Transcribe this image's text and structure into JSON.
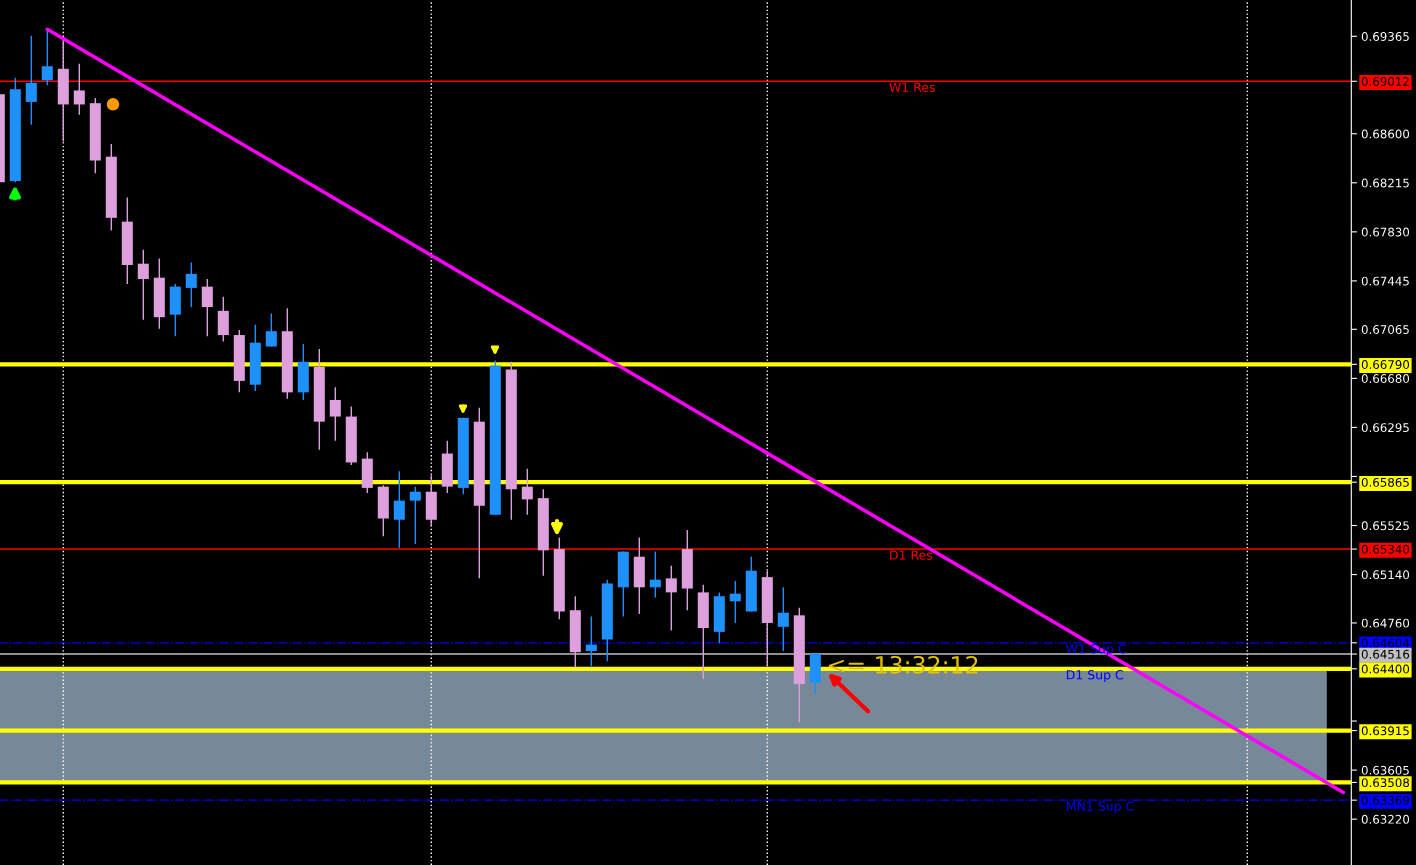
{
  "chart_data": {
    "type": "candlestick",
    "categories": [
      null,
      null,
      null,
      null,
      null,
      null,
      null,
      null,
      null,
      null,
      null,
      null,
      null,
      null,
      null,
      null,
      null,
      null,
      null,
      null,
      null,
      null,
      null,
      null,
      null,
      null,
      null,
      null,
      null,
      null,
      null,
      null,
      null,
      null,
      null,
      null,
      null,
      null,
      null,
      null,
      null,
      null,
      null,
      null,
      null,
      null,
      null,
      null,
      null,
      null,
      null,
      null,
      null,
      null,
      null,
      null,
      null,
      null,
      null,
      null,
      null,
      null,
      null,
      null,
      null,
      null,
      null,
      null,
      null,
      null,
      null,
      null,
      null,
      null,
      null,
      null,
      null,
      null,
      null,
      null,
      null,
      null,
      null,
      null,
      null
    ],
    "ohlc": [
      [
        0.6891,
        0.6892,
        0.6821,
        0.6822
      ],
      [
        0.6823,
        0.6904,
        0.6822,
        0.6895
      ],
      [
        0.6885,
        0.6937,
        0.6867,
        0.69
      ],
      [
        0.6902,
        0.6942,
        0.6898,
        0.6913
      ],
      [
        0.6911,
        0.6935,
        0.6854,
        0.6883
      ],
      [
        0.6894,
        0.6915,
        0.6875,
        0.6883
      ],
      [
        0.6884,
        0.6888,
        0.6829,
        0.6839
      ],
      [
        0.6842,
        0.6852,
        0.6784,
        0.6794
      ],
      [
        0.6791,
        0.681,
        0.6742,
        0.6757
      ],
      [
        0.6758,
        0.6769,
        0.6714,
        0.6746
      ],
      [
        0.6747,
        0.6762,
        0.6707,
        0.6716
      ],
      [
        0.6718,
        0.6742,
        0.6701,
        0.674
      ],
      [
        0.6739,
        0.6759,
        0.6724,
        0.675
      ],
      [
        0.674,
        0.6746,
        0.6701,
        0.6724
      ],
      [
        0.6721,
        0.6732,
        0.6697,
        0.6702
      ],
      [
        0.6702,
        0.6706,
        0.6657,
        0.6666
      ],
      [
        0.6663,
        0.671,
        0.6658,
        0.6696
      ],
      [
        0.6693,
        0.6719,
        0.6693,
        0.6705
      ],
      [
        0.6705,
        0.6723,
        0.6652,
        0.6657
      ],
      [
        0.6657,
        0.6695,
        0.6651,
        0.6681
      ],
      [
        0.6677,
        0.6691,
        0.6612,
        0.6634
      ],
      [
        0.6651,
        0.6661,
        0.6619,
        0.6638
      ],
      [
        0.6638,
        0.6646,
        0.66,
        0.6602
      ],
      [
        0.6605,
        0.661,
        0.6578,
        0.6582
      ],
      [
        0.6583,
        0.6584,
        0.6544,
        0.6558
      ],
      [
        0.6557,
        0.6595,
        0.6535,
        0.6572
      ],
      [
        0.6572,
        0.6583,
        0.6538,
        0.6579
      ],
      [
        0.6579,
        0.6592,
        0.6552,
        0.6557
      ],
      [
        0.6609,
        0.6619,
        0.6578,
        0.6583
      ],
      [
        0.6582,
        0.6637,
        0.6577,
        0.6637
      ],
      [
        0.6634,
        0.6645,
        0.6511,
        0.6568
      ],
      [
        0.6561,
        0.6682,
        0.6561,
        0.6678
      ],
      [
        0.6675,
        0.6681,
        0.6557,
        0.6581
      ],
      [
        0.6583,
        0.6597,
        0.6561,
        0.6573
      ],
      [
        0.6574,
        0.6581,
        0.6513,
        0.6533
      ],
      [
        0.6534,
        0.6543,
        0.6479,
        0.6485
      ],
      [
        0.6486,
        0.6497,
        0.6441,
        0.6453
      ],
      [
        0.6454,
        0.6481,
        0.6442,
        0.6459
      ],
      [
        0.6463,
        0.651,
        0.6446,
        0.6507
      ],
      [
        0.6504,
        0.6532,
        0.6481,
        0.6532
      ],
      [
        0.6528,
        0.6543,
        0.6483,
        0.6504
      ],
      [
        0.6504,
        0.6532,
        0.6496,
        0.651
      ],
      [
        0.6511,
        0.6521,
        0.647,
        0.65
      ],
      [
        0.6534,
        0.6549,
        0.6486,
        0.6503
      ],
      [
        0.65,
        0.6506,
        0.6432,
        0.6472
      ],
      [
        0.6469,
        0.65,
        0.646,
        0.6497
      ],
      [
        0.6493,
        0.6509,
        0.6476,
        0.6499
      ],
      [
        0.6485,
        0.6528,
        0.6485,
        0.6517
      ],
      [
        0.6512,
        0.6517,
        0.6442,
        0.6476
      ],
      [
        0.6473,
        0.6504,
        0.6454,
        0.6484
      ],
      [
        0.6482,
        0.6488,
        0.6398,
        0.6428
      ],
      [
        0.6429,
        0.6452,
        0.642,
        0.6452
      ],
      null,
      null,
      null,
      null,
      null,
      null,
      null,
      null,
      null,
      null,
      null,
      null,
      null,
      null,
      null,
      null,
      null,
      null,
      null,
      null,
      null,
      null,
      null,
      null,
      null,
      null,
      null,
      null,
      null,
      null,
      null,
      null,
      null
    ],
    "colors": [
      "#dda0dd",
      "#1e90ff",
      "#1e90ff",
      "#1e90ff",
      "#dda0dd",
      "#dda0dd",
      "#dda0dd",
      "#dda0dd",
      "#dda0dd",
      "#dda0dd",
      "#dda0dd",
      "#1e90ff",
      "#1e90ff",
      "#dda0dd",
      "#dda0dd",
      "#dda0dd",
      "#1e90ff",
      "#1e90ff",
      "#dda0dd",
      "#1e90ff",
      "#dda0dd",
      "#dda0dd",
      "#dda0dd",
      "#dda0dd",
      "#dda0dd",
      "#1e90ff",
      "#1e90ff",
      "#dda0dd",
      "#dda0dd",
      "#1e90ff",
      "#dda0dd",
      "#1e90ff",
      "#dda0dd",
      "#dda0dd",
      "#dda0dd",
      "#dda0dd",
      "#dda0dd",
      "#1e90ff",
      "#1e90ff",
      "#1e90ff",
      "#dda0dd",
      "#1e90ff",
      "#dda0dd",
      "#dda0dd",
      "#dda0dd",
      "#1e90ff",
      "#1e90ff",
      "#1e90ff",
      "#dda0dd",
      "#1e90ff",
      "#dda0dd",
      "#1e90ff",
      null,
      null,
      null,
      null,
      null,
      null,
      null,
      null,
      null,
      null,
      null,
      null,
      null,
      null,
      null,
      null,
      null,
      null,
      null,
      null,
      null,
      null,
      null,
      null,
      null,
      null,
      null,
      null,
      null,
      null,
      null,
      null,
      null
    ],
    "series": [
      {
        "type": "line",
        "color": "#ff00ff",
        "values": [
          null,
          null,
          null,
          0.6942,
          null,
          null,
          null,
          null,
          null,
          null,
          null,
          null,
          null,
          null,
          null,
          null,
          null,
          null,
          null,
          null,
          null,
          null,
          null,
          null,
          null,
          null,
          null,
          null,
          null,
          null,
          null,
          null,
          null,
          null,
          null,
          null,
          null,
          null,
          null,
          null,
          null,
          null,
          null,
          null,
          null,
          null,
          null,
          null,
          null,
          null,
          null,
          null,
          null,
          null,
          null,
          null,
          null,
          null,
          null,
          null,
          null,
          null,
          null,
          null,
          null,
          null,
          null,
          null,
          null,
          null,
          null,
          null,
          null,
          null,
          null,
          null,
          null,
          null,
          null,
          null,
          null,
          null,
          null,
          null,
          0.6343
        ]
      }
    ],
    "ylim": [
      0.6286,
      0.6965
    ],
    "yticks": [
      {
        "value": 0.69365,
        "label": "0.69365"
      },
      {
        "value": 0.686,
        "label": "0.68600"
      },
      {
        "value": 0.68215,
        "label": "0.68215"
      },
      {
        "value": 0.6783,
        "label": "0.67830"
      },
      {
        "value": 0.67445,
        "label": "0.67445"
      },
      {
        "value": 0.67065,
        "label": "0.67065"
      },
      {
        "value": 0.6668,
        "label": "0.66680"
      },
      {
        "value": 0.66295,
        "label": "0.66295"
      },
      {
        "value": 0.6591,
        "label": null
      },
      {
        "value": 0.65525,
        "label": "0.65525"
      },
      {
        "value": 0.6514,
        "label": "0.65140"
      },
      {
        "value": 0.6476,
        "label": "0.64760"
      },
      {
        "value": 0.6399,
        "label": null
      },
      {
        "value": 0.63605,
        "label": "0.63605"
      },
      {
        "value": 0.6322,
        "label": "0.63220"
      },
      {
        "value": 0.69012,
        "label": "0.69012"
      },
      {
        "value": 0.6679,
        "label": "0.66790"
      },
      {
        "value": 0.65865,
        "label": "0.65865"
      },
      {
        "value": 0.6534,
        "label": "0.65340"
      },
      {
        "value": 0.64604,
        "label": "0.64604"
      },
      {
        "value": 0.64516,
        "label": "0.64516"
      },
      {
        "value": 0.644,
        "label": "0.64400"
      },
      {
        "value": 0.63915,
        "label": "0.63915"
      },
      {
        "value": 0.63508,
        "label": "0.63508"
      },
      {
        "value": 0.63369,
        "label": "0.63369"
      }
    ],
    "ref_lines": [
      {
        "axis": "y",
        "value": 0.69012,
        "label": "W1 Res",
        "color": "#ff0000",
        "line_style": "solid"
      },
      {
        "axis": "y",
        "value": 0.6679,
        "label": null,
        "color": "#ffff00",
        "line_style": "solid"
      },
      {
        "axis": "y",
        "value": 0.65865,
        "label": null,
        "color": "#ffff00",
        "line_style": "solid"
      },
      {
        "axis": "y",
        "value": 0.6534,
        "label": "D1 Res",
        "color": "#ff0000",
        "line_style": "solid"
      },
      {
        "axis": "y",
        "value": 0.64604,
        "label": "W1 Sup C",
        "color": "#0000ff",
        "line_style": "dashdot"
      },
      {
        "axis": "y",
        "value": 0.64516,
        "label": null,
        "color": "#c0c0c0",
        "line_style": "solid"
      },
      {
        "axis": "y",
        "value": 0.644,
        "label": "D1 Sup C",
        "color": "#ffff00",
        "line_style": "solid"
      },
      {
        "axis": "y",
        "value": 0.63915,
        "label": null,
        "color": "#ffff00",
        "line_style": "solid"
      },
      {
        "axis": "y",
        "value": 0.63508,
        "label": null,
        "color": "#ffff00",
        "line_style": "solid"
      },
      {
        "axis": "y",
        "value": 0.63369,
        "label": "MN1 Sup C",
        "color": "#0000ff",
        "line_style": "dashdot"
      }
    ],
    "bands": [
      {
        "axis": "y",
        "from": 0.63508,
        "to": 0.644,
        "label": null,
        "color": "#778899"
      }
    ],
    "annotations": [
      "<= 13:32:12"
    ],
    "grid": "x",
    "legend": false
  }
}
